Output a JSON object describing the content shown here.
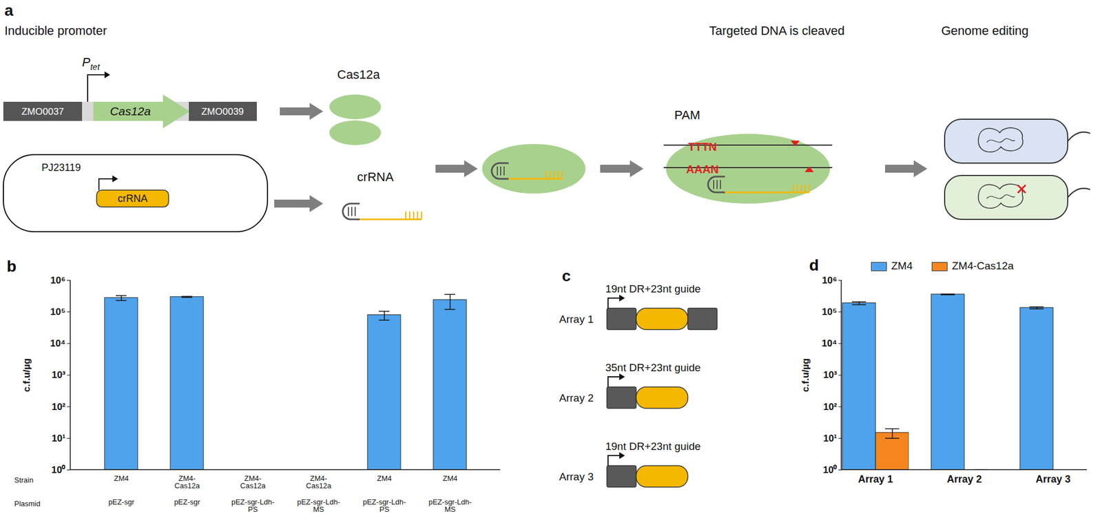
{
  "diagram": {
    "panel_a": {
      "label": "a",
      "headers": [
        "Inducible promoter",
        "Targeted DNA is cleaved",
        "Genome editing"
      ],
      "promoter": "P",
      "promoter_subscript": "tet",
      "gene": "Cas12a",
      "flank_left": "ZMO0037",
      "flank_right": "ZMO0039",
      "plasmid_promoter": "PJ23119",
      "plasmid_insert": "crRNA",
      "protein": "Cas12a",
      "guide": "crRNA",
      "pam_label": "PAM",
      "pam_top": "TTTN",
      "pam_bottom": "AAAN"
    },
    "panel_c": {
      "label": "c",
      "arrays": [
        {
          "label": "Array 1",
          "title": "19nt DR+23nt guide"
        },
        {
          "label": "Array 2",
          "title": "35nt DR+23nt guide"
        },
        {
          "label": "Array 3",
          "title": "19nt DR+23nt guide"
        }
      ]
    }
  },
  "chart_data": [
    {
      "type": "bar",
      "panel_label": "b",
      "y_label": "c.f.u/µg",
      "row_labels": [
        "Strain",
        "Plasmid"
      ],
      "categories": [
        "ZM4",
        "ZM4-Cas12a",
        "ZM4-Cas12a",
        "ZM4-Cas12a",
        "ZM4",
        "ZM4"
      ],
      "plasmids": [
        "pEZ-sgr",
        "pEZ-sgr",
        "pEZ-sgr-Ldh-PS",
        "pEZ-sgr-Ldh-MS",
        "pEZ-sgr-Ldh-PS",
        "pEZ-sgr-Ldh-MS"
      ],
      "values": [
        280000,
        300000,
        null,
        null,
        80000,
        240000
      ],
      "errors": [
        50000,
        10000,
        null,
        null,
        25000,
        120000
      ],
      "color": "#4fa3ec",
      "log": "y",
      "grid": false,
      "ylim": [
        1,
        1000000
      ],
      "yticks": [
        {
          "value": 1,
          "label": "10⁰"
        },
        {
          "value": 10,
          "label": "10¹"
        },
        {
          "value": 100,
          "label": "10²"
        },
        {
          "value": 1000,
          "label": "10³"
        },
        {
          "value": 10000,
          "label": "10⁴"
        },
        {
          "value": 100000,
          "label": "10⁵"
        },
        {
          "value": 1000000,
          "label": "10⁶"
        }
      ]
    },
    {
      "type": "bar",
      "panel_label": "d",
      "y_label": "c.f.u/µg",
      "categories": [
        "Array 1",
        "Array 2",
        "Array 3"
      ],
      "series": [
        {
          "name": "ZM4",
          "color": "#4fa3ec",
          "values": [
            190000,
            360000,
            135000
          ],
          "errors": [
            20000,
            10000,
            10000
          ]
        },
        {
          "name": "ZM4-Cas12a",
          "color": "#f5861f",
          "values": [
            15,
            1,
            null
          ],
          "errors": [
            5,
            0,
            null
          ]
        }
      ],
      "log": "y",
      "grid": false,
      "legend": "top",
      "ylim": [
        1,
        1000000
      ],
      "yticks": [
        {
          "value": 1,
          "label": "10⁰"
        },
        {
          "value": 10,
          "label": "10¹"
        },
        {
          "value": 100,
          "label": "10²"
        },
        {
          "value": 1000,
          "label": "10³"
        },
        {
          "value": 10000,
          "label": "10⁴"
        },
        {
          "value": 100000,
          "label": "10⁵"
        },
        {
          "value": 1000000,
          "label": "10⁶"
        }
      ]
    }
  ]
}
